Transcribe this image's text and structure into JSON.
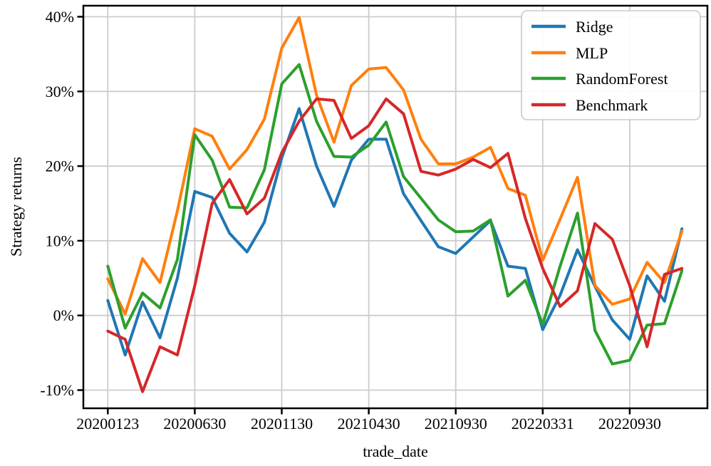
{
  "chart_data": {
    "type": "line",
    "title": "",
    "xlabel": "trade_date",
    "ylabel": "Strategy returns",
    "grid": true,
    "background_color": "#ffffff",
    "grid_color": "#cccccc",
    "frame_color": "#000000",
    "legend_position": "upper right",
    "x_point_count": 34,
    "x_tick_positions": [
      0,
      5,
      10,
      15,
      20,
      25,
      30
    ],
    "x_tick_labels": [
      "20200123",
      "20200630",
      "20201130",
      "20210430",
      "20210930",
      "20220331",
      "20220930"
    ],
    "y_tick_values": [
      -10,
      0,
      10,
      20,
      30,
      40
    ],
    "y_tick_labels": [
      "-10%",
      "0%",
      "10%",
      "20%",
      "30%",
      "40%"
    ],
    "ylim": [
      -12.4,
      41.5
    ],
    "xlim": [
      -1.4,
      34.5
    ],
    "y_unit": "percent",
    "series": [
      {
        "name": "Ridge",
        "color": "#1f77b4",
        "values": [
          2.0,
          -5.3,
          1.8,
          -3.0,
          5.0,
          16.6,
          15.8,
          11.0,
          8.5,
          12.5,
          21.1,
          27.7,
          20.0,
          14.6,
          20.8,
          23.6,
          23.6,
          16.3,
          12.7,
          9.2,
          8.3,
          10.5,
          12.7,
          6.6,
          6.3,
          -1.9,
          2.7,
          8.8,
          3.9,
          -0.6,
          -3.2,
          5.3,
          1.9,
          11.6
        ]
      },
      {
        "name": "MLP",
        "color": "#ff7f0e",
        "values": [
          4.9,
          0.2,
          7.6,
          4.4,
          14.0,
          25.0,
          24.0,
          19.6,
          22.2,
          26.3,
          35.8,
          39.9,
          29.5,
          23.2,
          30.8,
          33.0,
          33.2,
          30.2,
          23.6,
          20.3,
          20.3,
          21.2,
          22.5,
          17.0,
          16.1,
          7.4,
          12.9,
          18.5,
          4.0,
          1.5,
          2.2,
          7.1,
          4.4,
          11.3
        ]
      },
      {
        "name": "RandomForest",
        "color": "#2ca02c",
        "values": [
          6.6,
          -1.7,
          3.0,
          1.0,
          7.5,
          24.2,
          20.8,
          14.5,
          14.4,
          19.5,
          31.0,
          33.6,
          26.0,
          21.3,
          21.2,
          22.8,
          25.9,
          18.6,
          15.7,
          12.8,
          11.2,
          11.3,
          12.8,
          2.6,
          4.7,
          -1.2,
          6.6,
          13.7,
          -2.0,
          -6.5,
          -6.0,
          -1.3,
          -1.1,
          6.0
        ]
      },
      {
        "name": "Benchmark",
        "color": "#d62728",
        "values": [
          -2.1,
          -3.2,
          -10.2,
          -4.2,
          -5.3,
          4.0,
          15.0,
          18.2,
          13.6,
          15.7,
          21.8,
          26.0,
          29.0,
          28.8,
          23.7,
          25.4,
          29.0,
          27.0,
          19.3,
          18.8,
          19.6,
          20.9,
          19.8,
          21.7,
          13.0,
          6.3,
          1.2,
          3.3,
          12.3,
          10.2,
          4.0,
          -4.2,
          5.5,
          6.3
        ]
      }
    ]
  }
}
